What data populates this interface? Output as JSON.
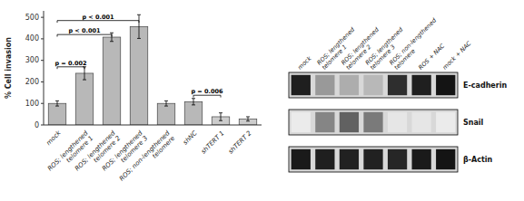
{
  "chart_data": [
    {
      "type": "bar",
      "ylabel": "% Cell invasion",
      "categories": [
        "mock",
        "ROS; lengthened\ntelomere 1",
        "ROS; lengthened\ntelomere 2",
        "ROS; lengthened\ntelomere 3",
        "ROS; non-lengthened\ntelomere",
        "shNC",
        "shTERT 1",
        "shTERT 2"
      ],
      "values": [
        100,
        240,
        408,
        457,
        100,
        108,
        38,
        28
      ],
      "errors": [
        12,
        30,
        20,
        55,
        12,
        15,
        18,
        10
      ],
      "colors": [
        "#b8b8b8",
        "#b8b8b8",
        "#b8b8b8",
        "#b8b8b8",
        "#b8b8b8",
        "#b8b8b8",
        "#cccccc",
        "#cccccc"
      ],
      "ylim": [
        0,
        530
      ],
      "yticks": [
        0,
        100,
        200,
        300,
        400,
        500
      ],
      "annotations": [
        {
          "x1": 0,
          "x2": 1,
          "y": 270,
          "label": "p = 0.002"
        },
        {
          "x1": 0,
          "x2": 2,
          "y": 420,
          "label": "p < 0.001"
        },
        {
          "x1": 0,
          "x2": 3,
          "y": 485,
          "label": "p < 0.001"
        },
        {
          "x1": 5,
          "x2": 6,
          "y": 138,
          "label": "p = 0.006"
        }
      ]
    },
    {
      "type": "heatmap",
      "x": [
        "mock",
        "ROS; lengthened\ntelomere 1",
        "ROS; lengthened\ntelomere 2",
        "ROS; lengthened\ntelomere 3",
        "ROS; non-lengthened\ntelomere",
        "ROS + NAC",
        "mock + NAC"
      ],
      "y": [
        "E-cadherin",
        "Snail",
        "β-Actin"
      ],
      "values": [
        [
          0.12,
          0.6,
          0.68,
          0.72,
          0.18,
          0.12,
          0.08
        ],
        [
          0.92,
          0.52,
          0.38,
          0.48,
          0.9,
          0.9,
          0.92
        ],
        [
          0.1,
          0.12,
          0.13,
          0.13,
          0.15,
          0.1,
          0.08
        ]
      ]
    }
  ]
}
